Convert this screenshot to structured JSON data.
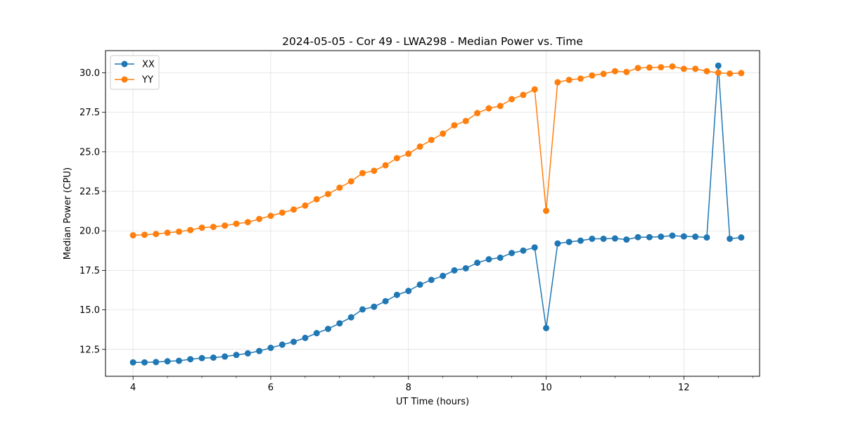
{
  "chart_data": {
    "type": "line",
    "title": "2024-05-05 - Cor 49 - LWA298 - Median Power vs. Time",
    "xlabel": "UT Time (hours)",
    "ylabel": "Median Power (CPU)",
    "xlim": [
      3.6,
      13.1
    ],
    "ylim": [
      10.8,
      31.4
    ],
    "xticks": [
      4,
      6,
      8,
      10,
      12
    ],
    "xtick_labels": [
      "4",
      "6",
      "8",
      "10",
      "12"
    ],
    "yticks": [
      12.5,
      15.0,
      17.5,
      20.0,
      22.5,
      25.0,
      27.5,
      30.0
    ],
    "ytick_labels": [
      "12.5",
      "15.0",
      "17.5",
      "20.0",
      "22.5",
      "25.0",
      "27.5",
      "30.0"
    ],
    "grid": true,
    "legend_position": "top-left",
    "x": [
      4.0,
      4.167,
      4.333,
      4.5,
      4.667,
      4.833,
      5.0,
      5.167,
      5.333,
      5.5,
      5.667,
      5.833,
      6.0,
      6.167,
      6.333,
      6.5,
      6.667,
      6.833,
      7.0,
      7.167,
      7.333,
      7.5,
      7.667,
      7.833,
      8.0,
      8.167,
      8.333,
      8.5,
      8.667,
      8.833,
      9.0,
      9.167,
      9.333,
      9.5,
      9.667,
      9.833,
      10.0,
      10.167,
      10.333,
      10.5,
      10.667,
      10.833,
      11.0,
      11.167,
      11.333,
      11.5,
      11.667,
      11.833,
      12.0,
      12.167,
      12.333,
      12.5,
      12.667,
      12.833
    ],
    "series": [
      {
        "name": "XX",
        "color": "#1f77b4",
        "values": [
          11.68,
          11.68,
          11.7,
          11.75,
          11.78,
          11.88,
          11.95,
          11.98,
          12.05,
          12.15,
          12.25,
          12.4,
          12.6,
          12.8,
          12.98,
          13.23,
          13.53,
          13.8,
          14.15,
          14.53,
          15.03,
          15.2,
          15.55,
          15.95,
          16.2,
          16.6,
          16.9,
          17.15,
          17.5,
          17.63,
          17.98,
          18.2,
          18.3,
          18.6,
          18.75,
          18.95,
          13.85,
          19.2,
          19.3,
          19.38,
          19.5,
          19.5,
          19.52,
          19.45,
          19.6,
          19.6,
          19.63,
          19.7,
          19.65,
          19.63,
          19.58,
          30.45,
          19.5,
          19.58
        ]
      },
      {
        "name": "YY",
        "color": "#ff7f0e",
        "values": [
          19.72,
          19.75,
          19.8,
          19.88,
          19.95,
          20.05,
          20.2,
          20.25,
          20.33,
          20.45,
          20.55,
          20.75,
          20.95,
          21.15,
          21.35,
          21.6,
          22.0,
          22.33,
          22.73,
          23.13,
          23.65,
          23.8,
          24.15,
          24.6,
          24.88,
          25.33,
          25.75,
          26.15,
          26.68,
          26.95,
          27.45,
          27.75,
          27.9,
          28.33,
          28.6,
          28.95,
          21.27,
          29.4,
          29.55,
          29.63,
          29.83,
          29.93,
          30.1,
          30.05,
          30.3,
          30.33,
          30.35,
          30.4,
          30.25,
          30.25,
          30.1,
          30.0,
          29.95,
          29.98
        ]
      }
    ]
  }
}
